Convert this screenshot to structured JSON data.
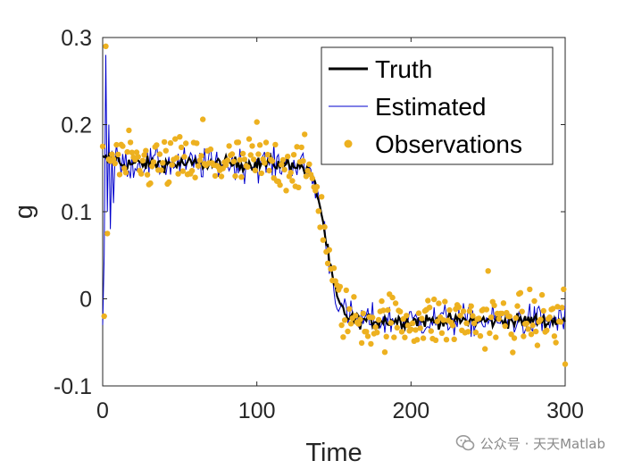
{
  "chart_data": {
    "type": "line",
    "title": "",
    "xlabel": "Time",
    "ylabel": "g",
    "xlim": [
      0,
      300
    ],
    "ylim": [
      -0.1,
      0.3
    ],
    "xticks": [
      0,
      100,
      200,
      300
    ],
    "xtick_labels": [
      "0",
      "100",
      "200",
      "300"
    ],
    "yticks": [
      -0.1,
      0,
      0.1,
      0.2,
      0.3
    ],
    "ytick_labels": [
      "-0.1",
      "0",
      "0.1",
      "0.2",
      "0.3"
    ],
    "grid": false,
    "legend_position": "top-right",
    "series": [
      {
        "name": "Truth",
        "style": "line",
        "color": "#000000",
        "segments": [
          {
            "x_start": 0,
            "x_end": 10,
            "value": 0.16
          },
          {
            "x_start": 10,
            "x_end": 125,
            "value": 0.155
          },
          {
            "x_start": 125,
            "x_end": 165,
            "value_start": 0.155,
            "value_end": -0.025,
            "shape": "sigmoid"
          },
          {
            "x_start": 165,
            "x_end": 300,
            "value": -0.025
          }
        ],
        "noise": 0.008
      },
      {
        "name": "Estimated",
        "style": "line",
        "color": "#0000cc",
        "initial_transient": [
          [
            0,
            -0.03
          ],
          [
            1,
            0.05
          ],
          [
            2,
            0.28
          ],
          [
            3,
            0.1
          ],
          [
            4,
            0.2
          ],
          [
            5,
            0.08
          ],
          [
            6,
            0.17
          ],
          [
            7,
            0.11
          ],
          [
            8,
            0.16
          ]
        ],
        "noise": 0.013
      },
      {
        "name": "Observations",
        "style": "markers",
        "color": "#EDB120",
        "noise": 0.022,
        "highlights": [
          [
            1,
            -0.02
          ],
          [
            2,
            0.29
          ],
          [
            3,
            0.075
          ],
          [
            65,
            0.206
          ],
          [
            100,
            0.203
          ],
          [
            250,
            0.032
          ],
          [
            300,
            -0.075
          ],
          [
            299,
            0.011
          ]
        ]
      }
    ]
  },
  "watermark": {
    "text": "公众号 · 天天Matlab",
    "icon": "wechat-icon"
  }
}
